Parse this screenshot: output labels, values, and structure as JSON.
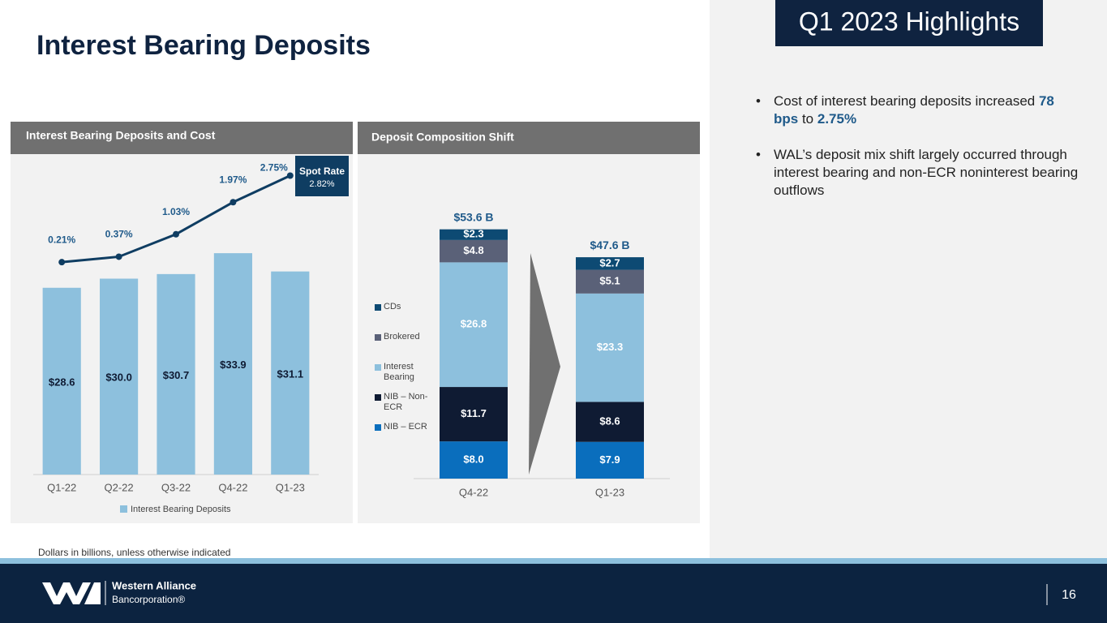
{
  "title": "Interest Bearing Deposits",
  "highlights_title": "Q1 2023 Highlights",
  "bullets": [
    [
      "Cost of interest bearing deposits increased ",
      "78 bps",
      " to ",
      "2.75%"
    ],
    [
      "WAL’s deposit mix shift largely occurred through interest bearing and non-ECR noninterest bearing outflows"
    ]
  ],
  "footnote": "Dollars in billions, unless otherwise indicated",
  "logo": {
    "name": "Western Alliance",
    "subname": "Bancorporation®"
  },
  "page_number": "16",
  "chart_data": [
    {
      "type": "bar",
      "title": "Interest Bearing Deposits and Cost",
      "categories": [
        "Q1-22",
        "Q2-22",
        "Q3-22",
        "Q4-22",
        "Q1-23"
      ],
      "ylim": [
        0,
        40
      ],
      "y2lim": [
        0,
        3
      ],
      "legend": "bottom",
      "series": [
        {
          "name": "Interest Bearing Deposits",
          "color": "#8dc0dd",
          "values": [
            28.6,
            30.0,
            30.7,
            33.9,
            31.1
          ],
          "value_labels": [
            "$28.6",
            "$30.0",
            "$30.7",
            "$33.9",
            "$31.1"
          ]
        },
        {
          "type": "line",
          "axis": "y2",
          "color": "#0f3d62",
          "values": [
            0.21,
            0.37,
            1.03,
            1.97,
            2.75
          ],
          "value_labels": [
            "0.21%",
            "0.37%",
            "1.03%",
            "1.97%",
            "2.75%"
          ]
        }
      ],
      "annotation": {
        "label": "Spot Rate",
        "value": 2.82,
        "value_label": "2.82%"
      }
    },
    {
      "type": "bar",
      "stacked": true,
      "title": "Deposit Composition Shift",
      "categories": [
        "Q4-22",
        "Q1-23"
      ],
      "ylim": [
        0,
        60
      ],
      "legend": "left",
      "series": [
        {
          "name": "NIB – ECR",
          "color": "#0a6ebd",
          "values": [
            8.0,
            7.9
          ],
          "value_labels": [
            "$8.0",
            "$7.9"
          ]
        },
        {
          "name": "NIB – Non-ECR",
          "color": "#0f1b33",
          "values": [
            11.7,
            8.6
          ],
          "value_labels": [
            "$11.7",
            "$8.6"
          ]
        },
        {
          "name": "Interest Bearing",
          "color": "#8dc0dd",
          "values": [
            26.8,
            23.3
          ],
          "value_labels": [
            "$26.8",
            "$23.3"
          ]
        },
        {
          "name": "Brokered",
          "color": "#5a6178",
          "values": [
            4.8,
            5.1
          ],
          "value_labels": [
            "$4.8",
            "$5.1"
          ]
        },
        {
          "name": "CDs",
          "color": "#0d4a73",
          "values": [
            2.3,
            2.7
          ],
          "value_labels": [
            "$2.3",
            "$2.7"
          ]
        }
      ],
      "totals": {
        "values": [
          53.6,
          47.6
        ],
        "value_labels": [
          "$53.6 B",
          "$47.6 B"
        ]
      }
    }
  ]
}
